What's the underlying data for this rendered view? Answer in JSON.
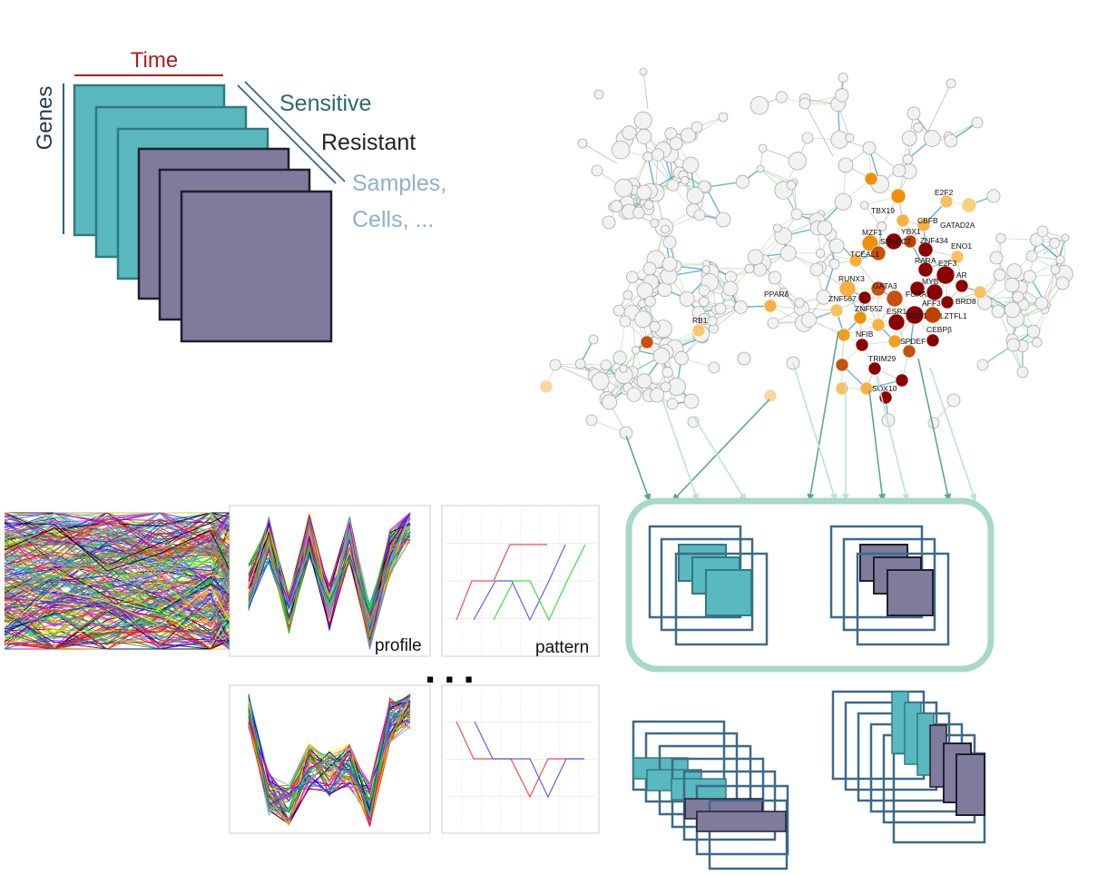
{
  "stack_labels": {
    "time": "Time",
    "genes": "Genes",
    "sensitive": "Sensitive",
    "resistant": "Resistant",
    "samples_line1": "Samples,",
    "samples_line2": "Cells, ..."
  },
  "panels": {
    "profile_label": "profile",
    "pattern_label": "pattern",
    "ellipsis": "..."
  },
  "network": {
    "gene_labels": [
      "E2F2",
      "TBX19",
      "CBFB",
      "GATAD2A",
      "MZF1",
      "YBX1",
      "SNAPC2",
      "ZNF434",
      "TCEAL1",
      "ENO1",
      "RARA",
      "E2F3",
      "RUNX3",
      "AR",
      "GATA3",
      "MYB",
      "FOXA1",
      "ZNF567",
      "AFF3",
      "BRD8",
      "ZNF552",
      "ESR1",
      "XBP1",
      "LZTFL1",
      "CEBPβ",
      "NFIB",
      "SPDEF",
      "TRIM29",
      "SOX10",
      "PPARδ",
      "RB1"
    ]
  },
  "colors": {
    "sensitive_fill": "#5ab8bf",
    "resistant_fill": "#7f7b9c",
    "frame_stroke": "#3d6a8a",
    "time_red": "#b01c1c",
    "sensitive_text": "#2b6a6e",
    "samples_text": "#8fb0c8",
    "highlight_box": "#a8d8c8",
    "node_dark_red": "#8b0000",
    "node_orange_red": "#c85a10",
    "node_orange": "#f0a020",
    "node_light_orange": "#f8c870"
  }
}
